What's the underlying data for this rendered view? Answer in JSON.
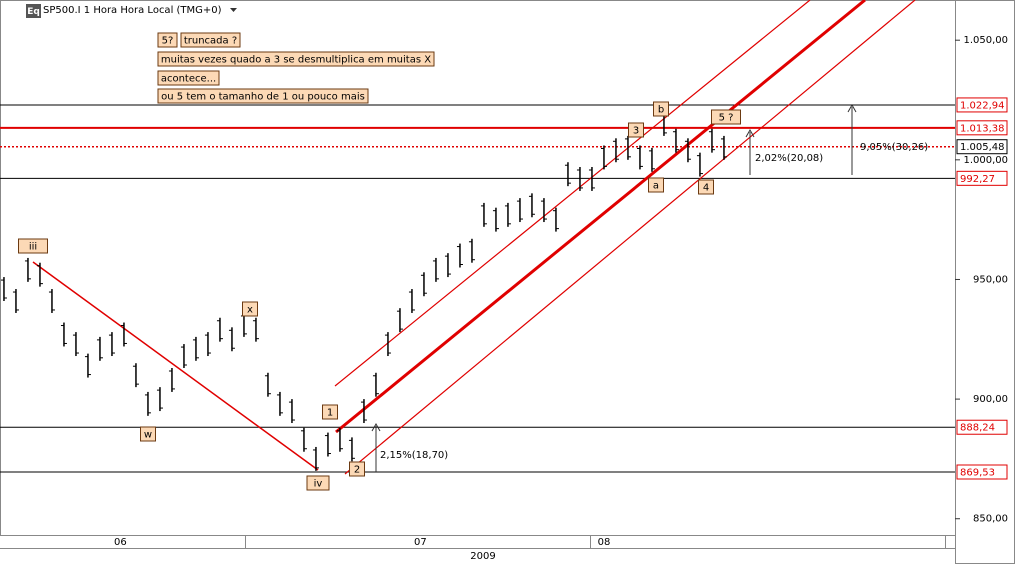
{
  "header": {
    "icon": "Eq",
    "title": "SP500.I 1 Hora Hora Local (TMG+0)"
  },
  "chart_data": {
    "type": "ohlc",
    "color": "#000000",
    "high": [
      951,
      946,
      959,
      957,
      946,
      932,
      928,
      919,
      926,
      928,
      932,
      915,
      903,
      905,
      913,
      923,
      926,
      928,
      934,
      930,
      936,
      934,
      911,
      903,
      900,
      888,
      880,
      886,
      888,
      884,
      900,
      911,
      928,
      938,
      946,
      953,
      959,
      961,
      965,
      967,
      982,
      980,
      982,
      984,
      986,
      984,
      980,
      999,
      997,
      997,
      1006,
      1009,
      1010,
      1006,
      1005,
      1020,
      1013,
      1009,
      1003,
      1013,
      1010
    ],
    "low": [
      941,
      936,
      949,
      947,
      936,
      922,
      918,
      909,
      916,
      918,
      922,
      905,
      893,
      895,
      903,
      913,
      916,
      918,
      924,
      920,
      926,
      924,
      901,
      893,
      890,
      878,
      870,
      876,
      878,
      874,
      890,
      901,
      918,
      928,
      936,
      943,
      949,
      951,
      955,
      957,
      972,
      970,
      972,
      974,
      976,
      974,
      970,
      989,
      987,
      987,
      996,
      999,
      1000,
      996,
      995,
      1010,
      1003,
      999,
      993,
      1003,
      1000
    ],
    "ylim": [
      843.2,
      1066.8
    ],
    "yticks": [
      {
        "value": 850,
        "label": "850,00"
      },
      {
        "value": 900,
        "label": "900,00"
      },
      {
        "value": 950,
        "label": "950,00"
      },
      {
        "value": 1000,
        "label": "1.000,00"
      },
      {
        "value": 1050,
        "label": "1.050,00"
      }
    ],
    "xlim": [
      -0.33,
      78.42
    ],
    "xticks": [
      {
        "value": 9.7,
        "label": "06"
      },
      {
        "value": 34.7,
        "label": "07"
      },
      {
        "value": 50,
        "label": "08"
      }
    ],
    "xlabel": "2009",
    "levels": [
      {
        "value": 1022.94,
        "label": "1.022,94",
        "line_color": "#000000",
        "label_color": "#e00000",
        "style": "solid",
        "width": 1
      },
      {
        "value": 1013.38,
        "label": "1.013,38",
        "line_color": "#e00000",
        "label_color": "#e00000",
        "style": "solid",
        "width": 2
      },
      {
        "value": 1005.48,
        "label": "1.005,48",
        "line_color": "#e00000",
        "label_color": "#000000",
        "style": "dotted",
        "width": 1.5
      },
      {
        "value": 992.27,
        "label": "992,27",
        "line_color": "#000000",
        "label_color": "#e00000",
        "style": "solid",
        "width": 1
      },
      {
        "value": 888.24,
        "label": "888,24",
        "line_color": "#000000",
        "label_color": "#e00000",
        "style": "solid",
        "width": 1
      },
      {
        "value": 869.53,
        "label": "869,53",
        "line_color": "#000000",
        "label_color": "#e00000",
        "style": "solid",
        "width": 1
      }
    ],
    "wave_labels": [
      "iii",
      "w",
      "x",
      "iv",
      "1",
      "2",
      "3",
      "b",
      "a",
      "4",
      "5 ?"
    ],
    "notes": [
      "5?",
      "truncada ?",
      "muitas vezes quado a 3 se desmultiplica em muitas X",
      "acontece...",
      "ou 5 tem o tamanho de 1 ou pouco mais"
    ],
    "measurements": [
      "2,15%(18,70)",
      "2,02%(20,08)",
      "9,05%(30,26)"
    ]
  }
}
